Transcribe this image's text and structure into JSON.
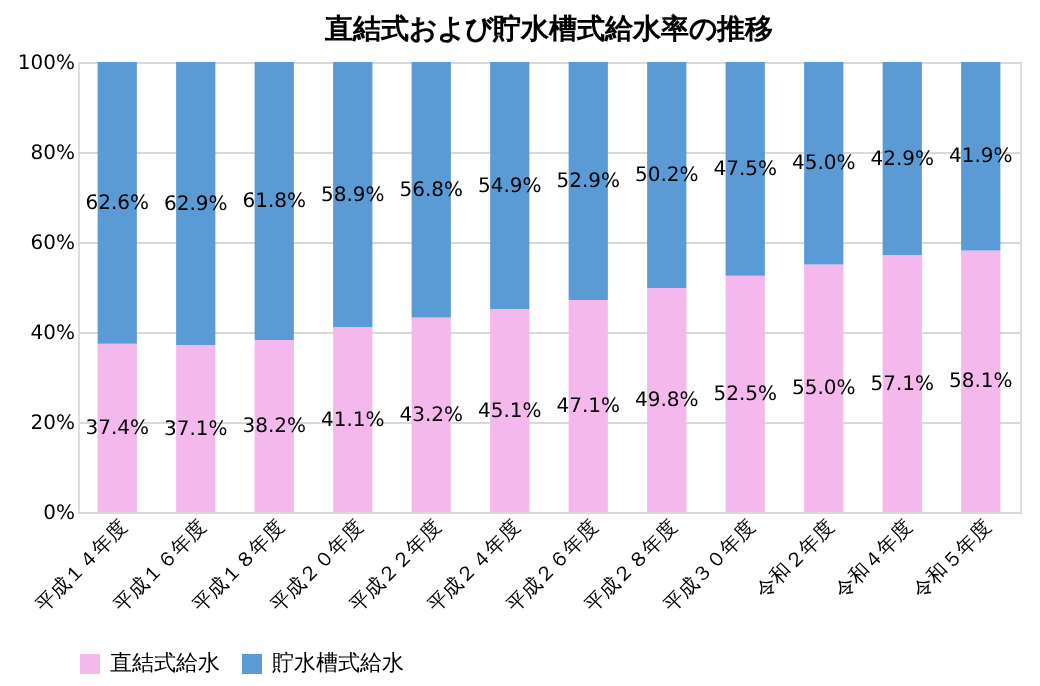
{
  "chart_data": {
    "type": "bar",
    "stacked": true,
    "title": "直結式および貯水槽式給水率の推移",
    "categories": [
      "平成１４年度",
      "平成１６年度",
      "平成１８年度",
      "平成２０年度",
      "平成２２年度",
      "平成２４年度",
      "平成２６年度",
      "平成２８年度",
      "平成３０年度",
      "令和２年度",
      "令和４年度",
      "令和５年度"
    ],
    "series": [
      {
        "name": "直結式給水",
        "color": "#f4b8ec",
        "values": [
          37.4,
          37.1,
          38.2,
          41.1,
          43.2,
          45.1,
          47.1,
          49.8,
          52.5,
          55.0,
          57.1,
          58.1
        ],
        "value_labels": [
          "37.4%",
          "37.1%",
          "38.2%",
          "41.1%",
          "43.2%",
          "45.1%",
          "47.1%",
          "49.8%",
          "52.5%",
          "55.0%",
          "57.1%",
          "58.1%"
        ]
      },
      {
        "name": "貯水槽式給水",
        "color": "#5b9bd5",
        "values": [
          62.6,
          62.9,
          61.8,
          58.9,
          56.8,
          54.9,
          52.9,
          50.2,
          47.5,
          45.0,
          42.9,
          41.9
        ],
        "value_labels": [
          "62.6%",
          "62.9%",
          "61.8%",
          "58.9%",
          "56.8%",
          "54.9%",
          "52.9%",
          "50.2%",
          "47.5%",
          "45.0%",
          "42.9%",
          "41.9%"
        ]
      }
    ],
    "ylim": [
      0,
      100
    ],
    "yticks": [
      {
        "value": 0,
        "label": "0%"
      },
      {
        "value": 20,
        "label": "20%"
      },
      {
        "value": 40,
        "label": "40%"
      },
      {
        "value": 60,
        "label": "60%"
      },
      {
        "value": 80,
        "label": "80%"
      },
      {
        "value": 100,
        "label": "100%"
      }
    ],
    "grid": "y",
    "legend": "bottom"
  }
}
